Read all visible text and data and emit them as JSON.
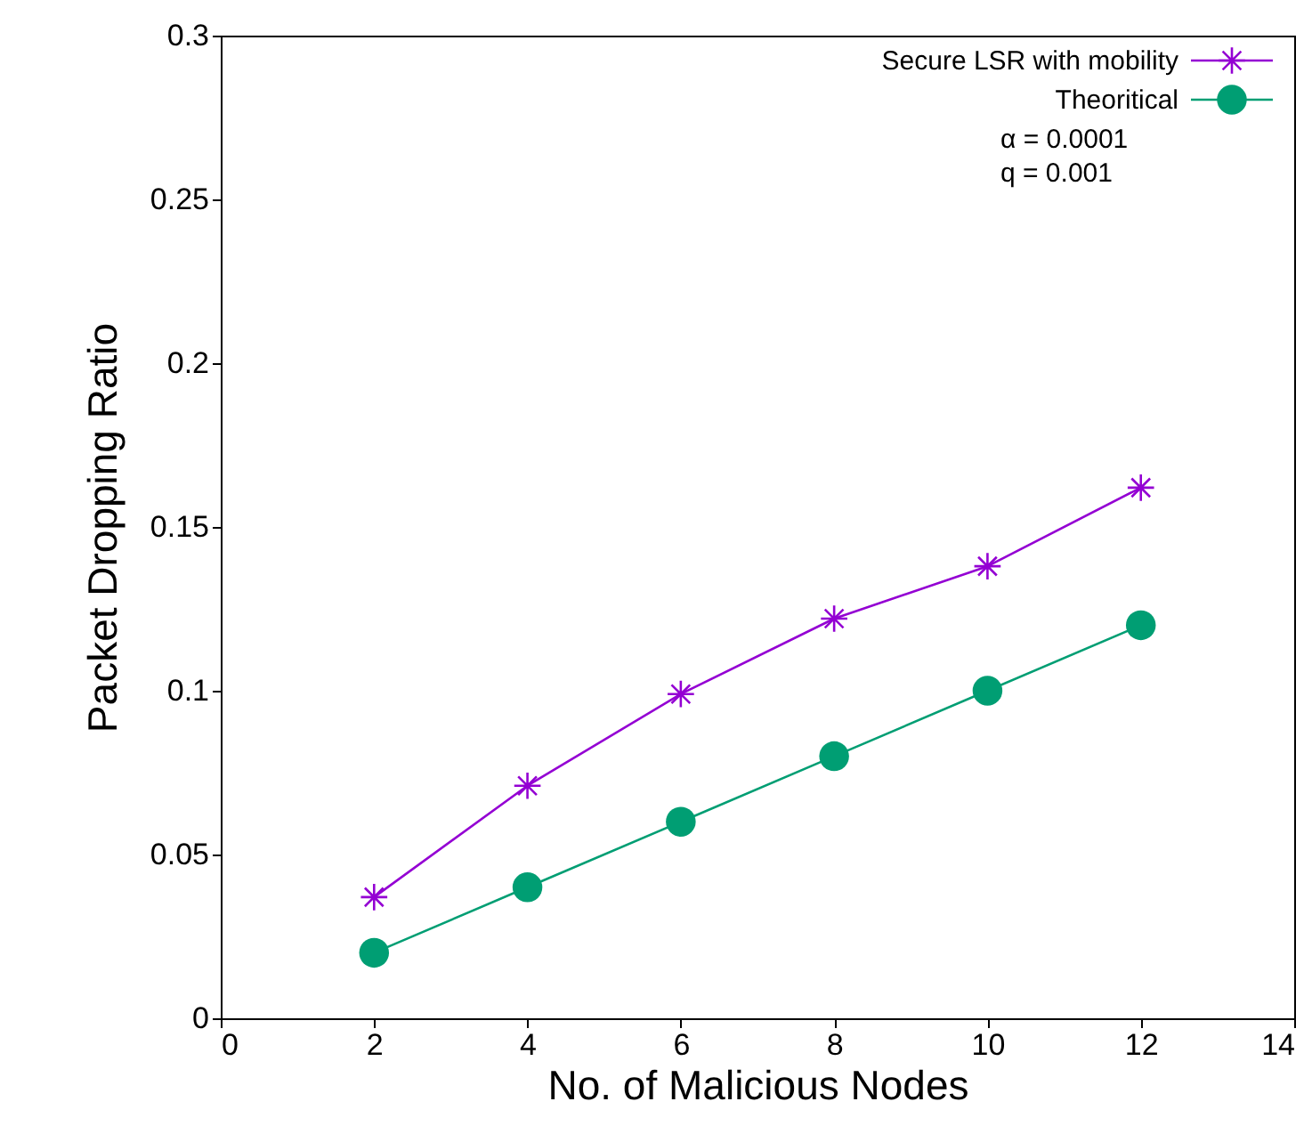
{
  "chart_data": {
    "type": "line",
    "xlabel": "No. of Malicious Nodes",
    "ylabel": "Packet Dropping Ratio",
    "x": [
      2,
      4,
      6,
      8,
      10,
      12
    ],
    "series": [
      {
        "name": "Secure LSR with mobility",
        "color": "#9400d3",
        "marker": "cross",
        "values": [
          0.037,
          0.071,
          0.099,
          0.122,
          0.138,
          0.162
        ]
      },
      {
        "name": "Theoritical",
        "color": "#009e73",
        "marker": "circle",
        "values": [
          0.02,
          0.04,
          0.06,
          0.08,
          0.1,
          0.12
        ]
      }
    ],
    "annotations": [
      "α = 0.0001",
      "q = 0.001"
    ],
    "xlim": [
      0,
      14
    ],
    "xticks": [
      0,
      2,
      4,
      6,
      8,
      10,
      12,
      14
    ],
    "ylim": [
      0,
      0.3
    ],
    "yticks": [
      0,
      0.05,
      0.1,
      0.15,
      0.2,
      0.25,
      0.3
    ],
    "grid": false,
    "legend": "top right",
    "line_style": "solid"
  }
}
